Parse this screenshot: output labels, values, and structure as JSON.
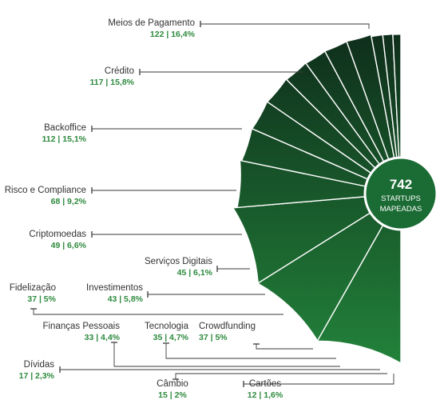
{
  "chart_data": {
    "type": "pie",
    "total": {
      "value": "742",
      "line1": "STARTUPS",
      "line2": "MAPEADAS"
    },
    "categories": [
      "Meios de Pagamento",
      "Crédito",
      "Backoffice",
      "Risco e Compliance",
      "Criptomoedas",
      "Serviços Digitais",
      "Investimentos",
      "Fidelização",
      "Finanças Pessoais",
      "Tecnologia",
      "Crowdfunding",
      "Dívidas",
      "Câmbio",
      "Cartões"
    ],
    "counts": [
      122,
      117,
      112,
      68,
      49,
      45,
      43,
      37,
      33,
      35,
      37,
      17,
      15,
      12
    ],
    "percents": [
      16.4,
      15.8,
      15.1,
      9.2,
      6.6,
      6.1,
      5.8,
      5,
      4.4,
      4.7,
      5,
      2.3,
      2,
      1.6
    ],
    "value_labels": [
      "122 | 16,4%",
      "117 | 15,8%",
      "112 | 15,1%",
      "68 | 9,2%",
      "49 | 6,6%",
      "45 | 6,1%",
      "43 | 5,8%",
      "37 | 5%",
      "33 | 4,4%",
      "35 | 4,7%",
      "37 | 5%",
      "17 | 2,3%",
      "15 | 2%",
      "12 | 1,6%"
    ],
    "colors": {
      "dark": "#0e2a1a",
      "light": "#22823a",
      "separator": "#ffffff",
      "leader": "#3a3a3a",
      "value_text": "#2e8a3e",
      "name_text": "#333333",
      "center_fill": "#1b6b34"
    },
    "legend": "none"
  }
}
